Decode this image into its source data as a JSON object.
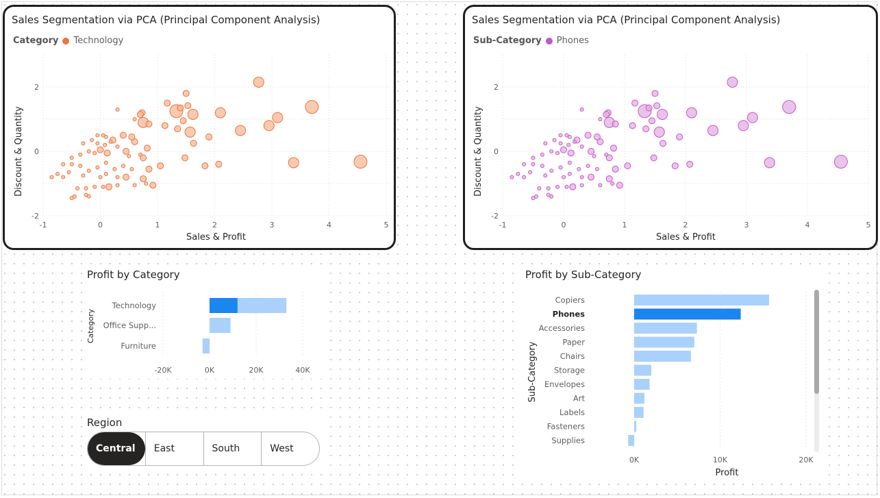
{
  "scatter_left": {
    "title": "Sales Segmentation via PCA (Principal Component Analysis)",
    "legend_title": "Category",
    "legend_label": "Technology",
    "color": "#e9743f",
    "fill": "#f5b896"
  },
  "scatter_right": {
    "title": "Sales Segmentation via PCA (Principal Component Analysis)",
    "legend_title": "Sub-Category",
    "legend_label": "Phones",
    "color": "#c457c6",
    "fill": "#e3afe4"
  },
  "profit_by_category": {
    "title": "Profit by Category",
    "ylabel": "Category"
  },
  "profit_by_subcategory": {
    "title": "Profit by Sub-Category",
    "ylabel": "Sub-Category",
    "xlabel": "Profit"
  },
  "region_slicer": {
    "title": "Region",
    "options": [
      "Central",
      "East",
      "South",
      "West"
    ],
    "selected": "Central"
  },
  "chart_data": [
    {
      "id": "pca_left",
      "type": "scatter",
      "title": "Sales Segmentation via PCA (Principal Component Analysis)",
      "xlabel": "Sales & Profit",
      "ylabel": "Discount & Quantity",
      "xlim": [
        -1,
        5
      ],
      "ylim": [
        -2,
        2.3
      ],
      "xticks": [
        -1,
        0,
        1,
        2,
        3,
        4,
        5
      ],
      "yticks": [
        -2,
        0,
        2
      ],
      "grid": true,
      "legend": "top-left",
      "series": [
        {
          "name": "Technology"
        }
      ],
      "points": [
        [
          2.77,
          2.15,
          3
        ],
        [
          3.7,
          1.38,
          4
        ],
        [
          1.5,
          1.8,
          2
        ],
        [
          1.17,
          1.5,
          2
        ],
        [
          1.33,
          1.25,
          4
        ],
        [
          1.62,
          1.15,
          3
        ],
        [
          2.1,
          1.2,
          3
        ],
        [
          3.1,
          1.05,
          3
        ],
        [
          1.4,
          1.35,
          2
        ],
        [
          1.53,
          1.42,
          2
        ],
        [
          0.73,
          1.2,
          2
        ],
        [
          0.7,
          1.15,
          2
        ],
        [
          0.6,
          1.0,
          1
        ],
        [
          0.75,
          0.9,
          3
        ],
        [
          0.85,
          0.85,
          2
        ],
        [
          0.3,
          1.3,
          1
        ],
        [
          2.45,
          0.65,
          3
        ],
        [
          2.95,
          0.8,
          3
        ],
        [
          1.13,
          0.8,
          2
        ],
        [
          1.45,
          0.95,
          2
        ],
        [
          1.57,
          0.6,
          3
        ],
        [
          1.35,
          0.7,
          2
        ],
        [
          1.9,
          0.45,
          2
        ],
        [
          1.63,
          0.25,
          2
        ],
        [
          0.82,
          0.1,
          2
        ],
        [
          0.6,
          0.3,
          2
        ],
        [
          0.55,
          0.45,
          2
        ],
        [
          0.4,
          0.5,
          2
        ],
        [
          0.22,
          0.35,
          2
        ],
        [
          0.18,
          0.3,
          1
        ],
        [
          0.1,
          0.45,
          1
        ],
        [
          0.05,
          0.5,
          1
        ],
        [
          -0.05,
          0.5,
          1
        ],
        [
          -0.15,
          0.35,
          1
        ],
        [
          -0.3,
          0.25,
          1
        ],
        [
          -0.05,
          0.25,
          1
        ],
        [
          0.08,
          0.2,
          1
        ],
        [
          0.0,
          0.05,
          2
        ],
        [
          0.12,
          -0.05,
          2
        ],
        [
          -0.1,
          -0.05,
          1
        ],
        [
          -0.2,
          0.0,
          1
        ],
        [
          -0.35,
          -0.1,
          1
        ],
        [
          -0.5,
          -0.2,
          1
        ],
        [
          0.3,
          0.15,
          1
        ],
        [
          0.45,
          0.0,
          2
        ],
        [
          0.5,
          -0.15,
          1
        ],
        [
          0.7,
          -0.1,
          1
        ],
        [
          0.75,
          -0.2,
          2
        ],
        [
          1.48,
          -0.2,
          2
        ],
        [
          2.07,
          -0.4,
          2
        ],
        [
          3.38,
          -0.35,
          3
        ],
        [
          4.55,
          -0.32,
          4
        ],
        [
          1.83,
          -0.45,
          2
        ],
        [
          1.05,
          -0.45,
          2
        ],
        [
          0.85,
          -0.55,
          2
        ],
        [
          0.55,
          -0.55,
          1
        ],
        [
          0.4,
          -0.45,
          1
        ],
        [
          0.25,
          -0.55,
          1
        ],
        [
          0.1,
          -0.35,
          1
        ],
        [
          -0.05,
          -0.5,
          1
        ],
        [
          -0.2,
          -0.6,
          1
        ],
        [
          -0.35,
          -0.45,
          1
        ],
        [
          -0.5,
          -0.4,
          1
        ],
        [
          -0.65,
          -0.4,
          1
        ],
        [
          -0.55,
          -0.65,
          1
        ],
        [
          -0.75,
          -0.7,
          1
        ],
        [
          -0.85,
          -0.8,
          1
        ],
        [
          -0.65,
          -0.8,
          1
        ],
        [
          -0.3,
          -0.75,
          1
        ],
        [
          0.0,
          -0.8,
          1
        ],
        [
          0.1,
          -0.7,
          1
        ],
        [
          0.3,
          -0.8,
          1
        ],
        [
          0.45,
          -0.8,
          2
        ],
        [
          0.75,
          -0.85,
          2
        ],
        [
          0.8,
          -1.0,
          1
        ],
        [
          0.92,
          -1.05,
          2
        ],
        [
          0.6,
          -1.05,
          1
        ],
        [
          0.3,
          -1.05,
          1
        ],
        [
          0.05,
          -1.1,
          1
        ],
        [
          -0.1,
          -1.1,
          1
        ],
        [
          -0.25,
          -1.15,
          1
        ],
        [
          -0.4,
          -1.15,
          1
        ],
        [
          0.15,
          -1.1,
          2
        ],
        [
          -0.25,
          -1.35,
          1
        ],
        [
          -0.45,
          -1.4,
          1
        ],
        [
          -0.2,
          -1.4,
          1
        ],
        [
          -0.5,
          -1.45,
          1
        ]
      ]
    },
    {
      "id": "pca_right",
      "type": "scatter",
      "title": "Sales Segmentation via PCA (Principal Component Analysis)",
      "xlabel": "Sales & Profit",
      "ylabel": "Discount & Quantity",
      "xlim": [
        -1,
        5
      ],
      "ylim": [
        -2,
        2.3
      ],
      "xticks": [
        -1,
        0,
        1,
        2,
        3,
        4,
        5
      ],
      "yticks": [
        -2,
        0,
        2
      ],
      "grid": true,
      "legend": "top-left",
      "series": [
        {
          "name": "Phones"
        }
      ],
      "points": [
        [
          2.77,
          2.15,
          3
        ],
        [
          3.7,
          1.38,
          4
        ],
        [
          1.5,
          1.8,
          2
        ],
        [
          1.17,
          1.5,
          2
        ],
        [
          1.33,
          1.25,
          4
        ],
        [
          1.62,
          1.15,
          3
        ],
        [
          2.1,
          1.2,
          3
        ],
        [
          3.1,
          1.05,
          3
        ],
        [
          1.4,
          1.35,
          2
        ],
        [
          1.53,
          1.42,
          2
        ],
        [
          0.73,
          1.2,
          2
        ],
        [
          0.7,
          1.15,
          2
        ],
        [
          0.6,
          1.0,
          1
        ],
        [
          0.75,
          0.9,
          3
        ],
        [
          0.85,
          0.85,
          2
        ],
        [
          0.3,
          1.3,
          1
        ],
        [
          2.45,
          0.65,
          3
        ],
        [
          2.95,
          0.8,
          3
        ],
        [
          1.13,
          0.8,
          2
        ],
        [
          1.45,
          0.95,
          2
        ],
        [
          1.57,
          0.6,
          3
        ],
        [
          1.35,
          0.7,
          2
        ],
        [
          1.9,
          0.45,
          2
        ],
        [
          1.63,
          0.25,
          2
        ],
        [
          0.82,
          0.1,
          2
        ],
        [
          0.6,
          0.3,
          2
        ],
        [
          0.55,
          0.45,
          2
        ],
        [
          0.4,
          0.5,
          2
        ],
        [
          0.22,
          0.35,
          2
        ],
        [
          0.18,
          0.3,
          1
        ],
        [
          0.1,
          0.45,
          1
        ],
        [
          0.05,
          0.5,
          1
        ],
        [
          -0.05,
          0.5,
          1
        ],
        [
          -0.15,
          0.35,
          1
        ],
        [
          -0.3,
          0.25,
          1
        ],
        [
          -0.05,
          0.25,
          1
        ],
        [
          0.08,
          0.2,
          1
        ],
        [
          0.0,
          0.05,
          2
        ],
        [
          0.12,
          -0.05,
          2
        ],
        [
          -0.1,
          -0.05,
          1
        ],
        [
          -0.2,
          0.0,
          1
        ],
        [
          -0.35,
          -0.1,
          1
        ],
        [
          -0.5,
          -0.2,
          1
        ],
        [
          0.3,
          0.15,
          1
        ],
        [
          0.45,
          0.0,
          2
        ],
        [
          0.5,
          -0.15,
          1
        ],
        [
          0.7,
          -0.1,
          1
        ],
        [
          0.75,
          -0.2,
          2
        ],
        [
          1.48,
          -0.2,
          2
        ],
        [
          2.07,
          -0.4,
          2
        ],
        [
          3.38,
          -0.35,
          3
        ],
        [
          4.55,
          -0.32,
          4
        ],
        [
          1.83,
          -0.45,
          2
        ],
        [
          1.05,
          -0.45,
          2
        ],
        [
          0.85,
          -0.55,
          2
        ],
        [
          0.55,
          -0.55,
          1
        ],
        [
          0.4,
          -0.45,
          1
        ],
        [
          0.25,
          -0.55,
          1
        ],
        [
          0.1,
          -0.35,
          1
        ],
        [
          -0.05,
          -0.5,
          1
        ],
        [
          -0.2,
          -0.6,
          1
        ],
        [
          -0.35,
          -0.45,
          1
        ],
        [
          -0.5,
          -0.4,
          1
        ],
        [
          -0.65,
          -0.4,
          1
        ],
        [
          -0.55,
          -0.65,
          1
        ],
        [
          -0.75,
          -0.7,
          1
        ],
        [
          -0.85,
          -0.8,
          1
        ],
        [
          -0.65,
          -0.8,
          1
        ],
        [
          -0.3,
          -0.75,
          1
        ],
        [
          0.0,
          -0.8,
          1
        ],
        [
          0.1,
          -0.7,
          1
        ],
        [
          0.3,
          -0.8,
          1
        ],
        [
          0.45,
          -0.8,
          2
        ],
        [
          0.75,
          -0.85,
          2
        ],
        [
          0.8,
          -1.0,
          1
        ],
        [
          0.92,
          -1.05,
          2
        ],
        [
          0.6,
          -1.05,
          1
        ],
        [
          0.3,
          -1.05,
          1
        ],
        [
          0.05,
          -1.1,
          1
        ],
        [
          -0.1,
          -1.1,
          1
        ],
        [
          -0.25,
          -1.15,
          1
        ],
        [
          -0.4,
          -1.15,
          1
        ],
        [
          0.15,
          -1.1,
          2
        ],
        [
          -0.25,
          -1.35,
          1
        ],
        [
          -0.45,
          -1.4,
          1
        ],
        [
          -0.2,
          -1.4,
          1
        ],
        [
          -0.5,
          -1.45,
          1
        ]
      ]
    },
    {
      "id": "profit_category",
      "type": "bar",
      "orientation": "horizontal",
      "title": "Profit by Category",
      "ylabel": "Category",
      "categories": [
        "Technology",
        "Office Supp...",
        "Furniture"
      ],
      "series": [
        {
          "values": [
            33000,
            9000,
            -3000
          ]
        },
        {
          "values": [
            12000,
            0,
            0
          ]
        }
      ],
      "xticks": [
        "-20K",
        "0K",
        "20K",
        "40K"
      ],
      "xtick_values": [
        -20000,
        0,
        20000,
        40000
      ],
      "xlim": [
        -20000,
        40000
      ],
      "colors": {
        "highlight": "#1a86f0",
        "base": "#a9d1fb"
      }
    },
    {
      "id": "profit_subcategory",
      "type": "bar",
      "orientation": "horizontal",
      "title": "Profit by Sub-Category",
      "xlabel": "Profit",
      "ylabel": "Sub-Category",
      "categories": [
        "Copiers",
        "Phones",
        "Accessories",
        "Paper",
        "Chairs",
        "Storage",
        "Envelopes",
        "Art",
        "Labels",
        "Fasteners",
        "Supplies"
      ],
      "highlighted": "Phones",
      "values": [
        15700,
        12400,
        7300,
        7000,
        6600,
        2000,
        1800,
        1200,
        1100,
        250,
        -700
      ],
      "xticks": [
        "0K",
        "10K",
        "20K"
      ],
      "xtick_values": [
        0,
        10000,
        20000
      ],
      "xlim": [
        0,
        20000
      ],
      "colors": {
        "highlight": "#1a86f0",
        "base": "#a9d1fb"
      }
    }
  ]
}
